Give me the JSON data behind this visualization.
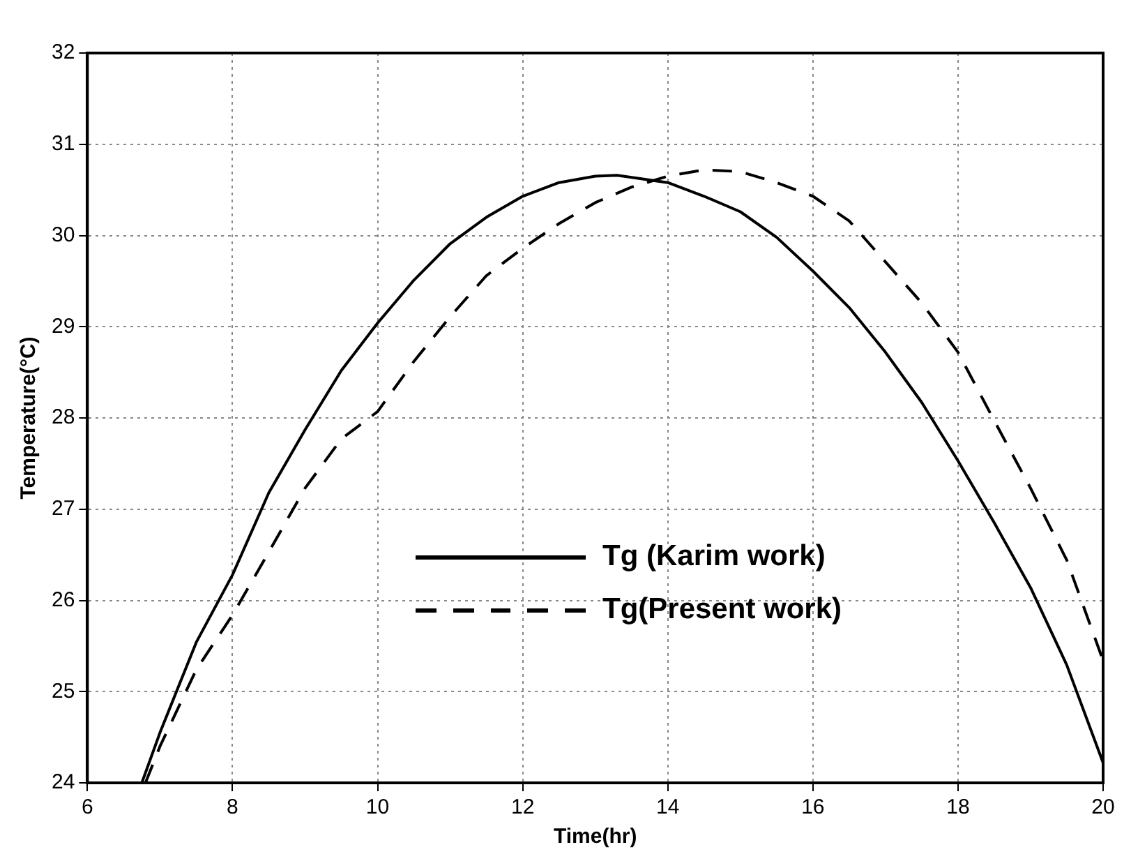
{
  "chart_data": {
    "type": "line",
    "xlabel": "Time(hr)",
    "ylabel": "Temperature(°C)",
    "xlim": [
      6,
      20
    ],
    "ylim": [
      24,
      32
    ],
    "xticks": [
      6,
      8,
      10,
      12,
      14,
      16,
      18,
      20
    ],
    "yticks": [
      24,
      25,
      26,
      27,
      28,
      29,
      30,
      31,
      32
    ],
    "grid": true,
    "legend": "bottom",
    "marker": "none",
    "series": [
      {
        "name": "Tg (Karim work)",
        "color": "#000000",
        "line_style": "solid",
        "x": [
          6.75,
          7,
          7.5,
          8,
          8.5,
          9,
          9.5,
          10,
          10.5,
          11,
          11.5,
          12,
          12.5,
          13,
          13.3,
          14,
          14.5,
          15,
          15.5,
          16,
          16.5,
          17,
          17.5,
          18,
          18.5,
          19,
          19.5,
          20
        ],
        "values": [
          24,
          24.55,
          25.54,
          26.28,
          27.18,
          27.87,
          28.52,
          29.04,
          29.51,
          29.91,
          30.2,
          30.43,
          30.58,
          30.65,
          30.66,
          30.58,
          30.43,
          30.26,
          29.98,
          29.61,
          29.21,
          28.72,
          28.17,
          27.53,
          26.85,
          26.14,
          25.29,
          24.22
        ]
      },
      {
        "name": "Tg(Present work)",
        "color": "#000000",
        "line_style": "dashed",
        "x": [
          6.8,
          7,
          7.5,
          8,
          8.5,
          9,
          9.5,
          10,
          10.5,
          11,
          11.5,
          12,
          12.5,
          13,
          13.5,
          14,
          14.5,
          15,
          15.5,
          16,
          16.5,
          17,
          17.5,
          18,
          18.5,
          19,
          19.5,
          20
        ],
        "values": [
          24,
          24.4,
          25.24,
          25.84,
          26.53,
          27.23,
          27.77,
          28.07,
          28.62,
          29.11,
          29.56,
          29.86,
          30.13,
          30.36,
          30.53,
          30.65,
          30.72,
          30.7,
          30.58,
          30.43,
          30.16,
          29.71,
          29.26,
          28.72,
          27.97,
          27.23,
          26.44,
          25.34
        ]
      }
    ]
  }
}
